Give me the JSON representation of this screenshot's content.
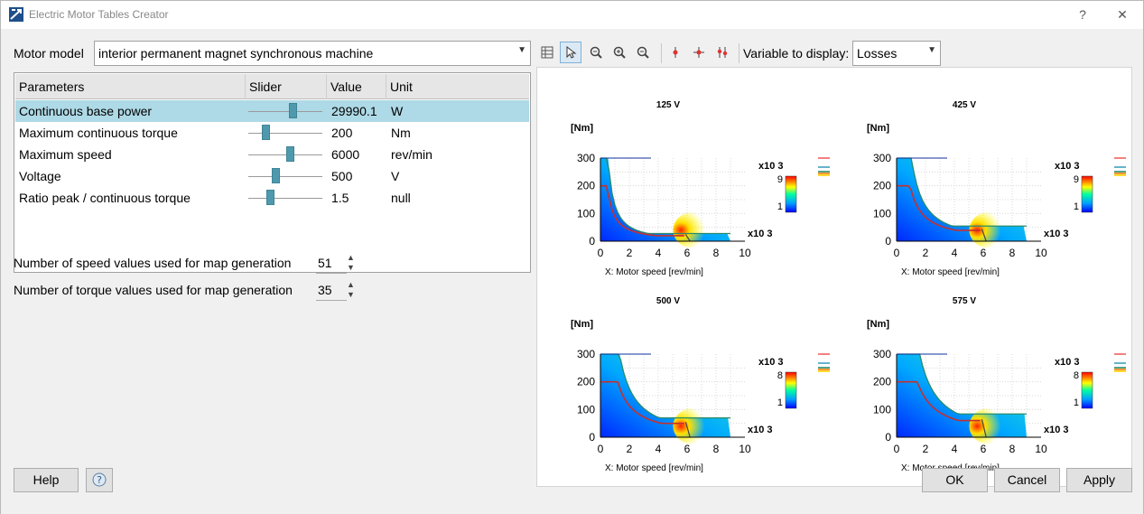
{
  "window": {
    "title": "Electric Motor Tables Creator",
    "help_char": "?",
    "close_char": "✕"
  },
  "motor": {
    "label": "Motor model",
    "value": "interior permanent magnet synchronous machine"
  },
  "table": {
    "headers": [
      "Parameters",
      "Slider",
      "Value",
      "Unit"
    ],
    "rows": [
      {
        "name": "Continuous base power",
        "value": "29990.1",
        "unit": "W",
        "level": 0.62,
        "selected": true
      },
      {
        "name": "Maximum continuous torque",
        "value": "200",
        "unit": "Nm",
        "level": 0.2
      },
      {
        "name": "Maximum speed",
        "value": "6000",
        "unit": "rev/min",
        "level": 0.57
      },
      {
        "name": "Voltage",
        "value": "500",
        "unit": "V",
        "level": 0.35
      },
      {
        "name": "Ratio peak / continuous torque",
        "value": "1.5",
        "unit": "null",
        "level": 0.27
      }
    ]
  },
  "speed_values": {
    "label": "Number of speed values used for map generation",
    "value": "51"
  },
  "torque_values": {
    "label": "Number of torque values used for map generation",
    "value": "35"
  },
  "toolbar": {
    "variable_label": "Variable to display:",
    "variable_value": "Losses",
    "icons": [
      "table-view-icon",
      "pointer-icon",
      "zoom-fit-icon",
      "zoom-in-icon",
      "zoom-out-icon",
      "marker-vertical-icon",
      "marker-cross-icon",
      "marker-double-icon"
    ]
  },
  "chart_data": [
    {
      "type": "heatmap",
      "title": "125 V",
      "ylabel": "[Nm]",
      "xlabel": "X: Motor speed [rev/min]",
      "x_multiplier": "x10 3",
      "xlim": [
        0,
        10
      ],
      "ylim": [
        0,
        300
      ],
      "xticks": [
        "0",
        "2",
        "4",
        "6",
        "8",
        "10"
      ],
      "yticks": [
        "0",
        "100",
        "200",
        "300"
      ],
      "colorbar": {
        "multiplier": "x10 3",
        "max": "9",
        "min": "1"
      }
    },
    {
      "type": "heatmap",
      "title": "425 V",
      "ylabel": "[Nm]",
      "xlabel": "X: Motor speed [rev/min]",
      "x_multiplier": "x10 3",
      "xlim": [
        0,
        10
      ],
      "ylim": [
        0,
        300
      ],
      "xticks": [
        "0",
        "2",
        "4",
        "6",
        "8",
        "10"
      ],
      "yticks": [
        "0",
        "100",
        "200",
        "300"
      ],
      "colorbar": {
        "multiplier": "x10 3",
        "max": "9",
        "min": "1"
      }
    },
    {
      "type": "heatmap",
      "title": "500 V",
      "ylabel": "[Nm]",
      "xlabel": "X: Motor speed [rev/min]",
      "x_multiplier": "x10 3",
      "xlim": [
        0,
        10
      ],
      "ylim": [
        0,
        300
      ],
      "xticks": [
        "0",
        "2",
        "4",
        "6",
        "8",
        "10"
      ],
      "yticks": [
        "0",
        "100",
        "200",
        "300"
      ],
      "colorbar": {
        "multiplier": "x10 3",
        "max": "8",
        "min": "1"
      }
    },
    {
      "type": "heatmap",
      "title": "575 V",
      "ylabel": "[Nm]",
      "xlabel": "X: Motor speed [rev/min]",
      "x_multiplier": "x10 3",
      "xlim": [
        0,
        10
      ],
      "ylim": [
        0,
        300
      ],
      "xticks": [
        "0",
        "2",
        "4",
        "6",
        "8",
        "10"
      ],
      "yticks": [
        "0",
        "100",
        "200",
        "300"
      ],
      "colorbar": {
        "multiplier": "x10 3",
        "max": "8",
        "min": "1"
      }
    }
  ],
  "buttons": {
    "help": "Help",
    "ok": "OK",
    "cancel": "Cancel",
    "apply": "Apply"
  }
}
